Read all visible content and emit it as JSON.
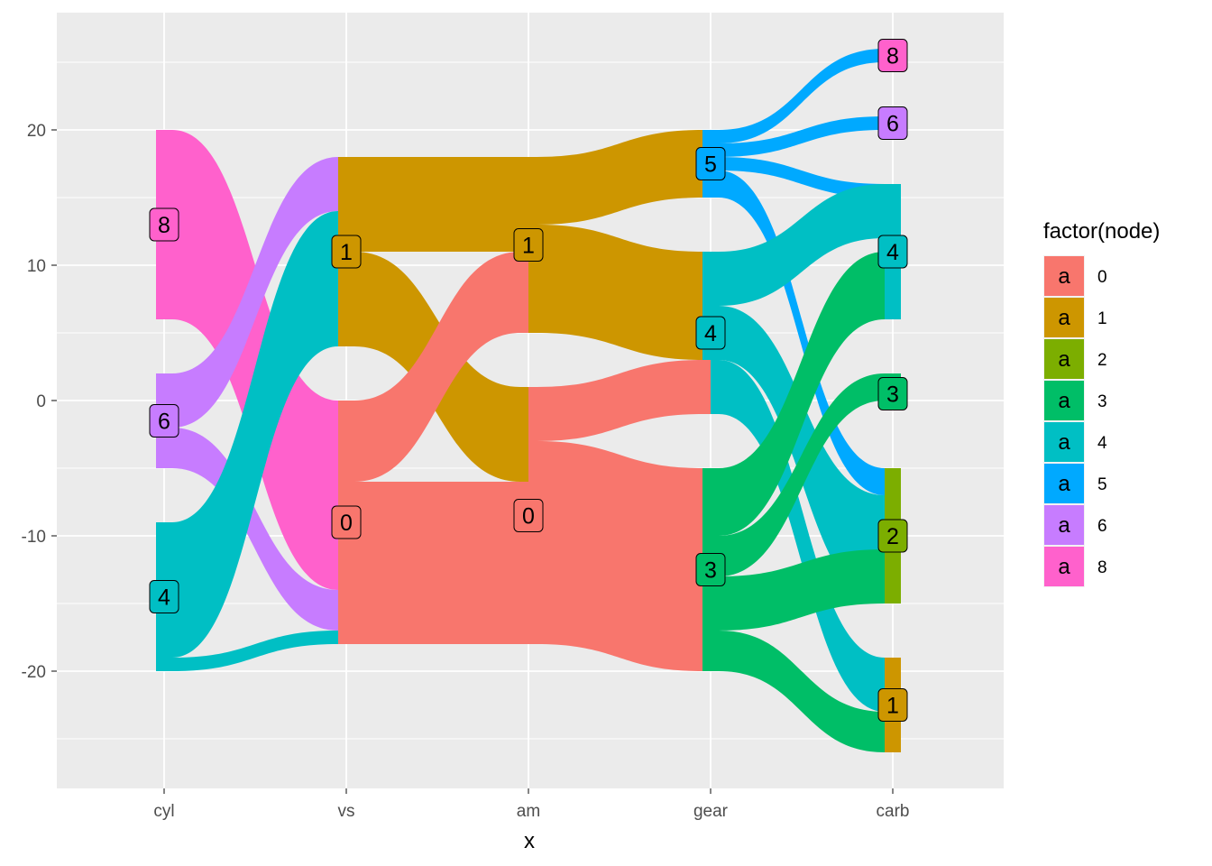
{
  "chart_data": {
    "type": "sankey",
    "xlabel": "x",
    "x_categories": [
      "cyl",
      "vs",
      "am",
      "gear",
      "carb"
    ],
    "y_ticks": [
      20,
      10,
      0,
      -10,
      -20
    ],
    "ylim": [
      -28.6,
      28.6
    ],
    "grid": true,
    "legend": {
      "title": "factor(node)",
      "placement": "right",
      "key_letter": "a",
      "entries": [
        {
          "label": "0",
          "color": "#F8766D"
        },
        {
          "label": "1",
          "color": "#CD9600"
        },
        {
          "label": "2",
          "color": "#7CAE00"
        },
        {
          "label": "3",
          "color": "#00BE67"
        },
        {
          "label": "4",
          "color": "#00BFC4"
        },
        {
          "label": "5",
          "color": "#00A9FF"
        },
        {
          "label": "6",
          "color": "#C77CFF"
        },
        {
          "label": "8",
          "color": "#FF61CC"
        }
      ]
    },
    "nodes": [
      {
        "x": "cyl",
        "node": "8",
        "label": "8",
        "ymin": 6,
        "ymax": 20,
        "label_y": 13
      },
      {
        "x": "cyl",
        "node": "6",
        "label": "6",
        "ymin": -5,
        "ymax": 2,
        "label_y": -1.5
      },
      {
        "x": "cyl",
        "node": "4",
        "label": "4",
        "ymin": -20,
        "ymax": -9,
        "label_y": -14.5
      },
      {
        "x": "vs",
        "node": "1",
        "label": "1",
        "ymin": 4,
        "ymax": 18,
        "label_y": 11
      },
      {
        "x": "vs",
        "node": "0",
        "label": "0",
        "ymin": -18,
        "ymax": 0,
        "label_y": -9
      },
      {
        "x": "am",
        "node": "1",
        "label": "1",
        "ymin": 11,
        "ymax": 11,
        "label_y": 11.5
      },
      {
        "x": "am",
        "node": "0",
        "label": "0",
        "ymin": -8.5,
        "ymax": -8.5,
        "label_y": -8.5
      },
      {
        "x": "gear",
        "node": "5",
        "label": "5",
        "ymin": 15,
        "ymax": 20,
        "label_y": 17.5
      },
      {
        "x": "gear",
        "node": "4",
        "label": "4",
        "ymin": 3,
        "ymax": 11,
        "label_y": 5
      },
      {
        "x": "gear",
        "node": "3",
        "label": "3",
        "ymin": -20,
        "ymax": -5,
        "label_y": -12.5
      },
      {
        "x": "carb",
        "node": "8",
        "label": "8",
        "ymin": 25,
        "ymax": 26,
        "label_y": 25.5
      },
      {
        "x": "carb",
        "node": "6",
        "label": "6",
        "ymin": 20,
        "ymax": 21,
        "label_y": 20.5
      },
      {
        "x": "carb",
        "node": "4",
        "label": "4",
        "ymin": 6,
        "ymax": 16,
        "label_y": 11
      },
      {
        "x": "carb",
        "node": "3",
        "label": "3",
        "ymin": 0,
        "ymax": 2,
        "label_y": 0.5
      },
      {
        "x": "carb",
        "node": "2",
        "label": "2",
        "ymin": -15,
        "ymax": -5,
        "label_y": -10
      },
      {
        "x": "carb",
        "node": "1",
        "label": "1",
        "ymin": -26,
        "ymax": -19,
        "label_y": -22.5
      }
    ],
    "flows": [
      {
        "from": "cyl",
        "to": "vs",
        "node": "8",
        "src": [
          6,
          20
        ],
        "dst": [
          -14,
          0
        ]
      },
      {
        "from": "cyl",
        "to": "vs",
        "node": "6",
        "src": [
          -2,
          2
        ],
        "dst": [
          14,
          18
        ]
      },
      {
        "from": "cyl",
        "to": "vs",
        "node": "6",
        "src": [
          -5,
          -2
        ],
        "dst": [
          -17,
          -14
        ]
      },
      {
        "from": "cyl",
        "to": "vs",
        "node": "4",
        "src": [
          -19,
          -9
        ],
        "dst": [
          4,
          14
        ]
      },
      {
        "from": "cyl",
        "to": "vs",
        "node": "4",
        "src": [
          -20,
          -19
        ],
        "dst": [
          -18,
          -17
        ]
      },
      {
        "from": "vs",
        "to": "am",
        "node": "1",
        "src": [
          11,
          18
        ],
        "dst": [
          11,
          18
        ]
      },
      {
        "from": "vs",
        "to": "am",
        "node": "1",
        "src": [
          4,
          11
        ],
        "dst": [
          -6,
          1
        ]
      },
      {
        "from": "vs",
        "to": "am",
        "node": "0",
        "src": [
          -6,
          0
        ],
        "dst": [
          5,
          11
        ]
      },
      {
        "from": "vs",
        "to": "am",
        "node": "0",
        "src": [
          -18,
          -6
        ],
        "dst": [
          -18,
          -6
        ]
      },
      {
        "from": "am",
        "to": "gear",
        "node": "1",
        "src": [
          13,
          18
        ],
        "dst": [
          15,
          20
        ]
      },
      {
        "from": "am",
        "to": "gear",
        "node": "1",
        "src": [
          5,
          13
        ],
        "dst": [
          3,
          11
        ]
      },
      {
        "from": "am",
        "to": "gear",
        "node": "0",
        "src": [
          -3,
          1
        ],
        "dst": [
          -1,
          3
        ]
      },
      {
        "from": "am",
        "to": "gear",
        "node": "0",
        "src": [
          -18,
          -3
        ],
        "dst": [
          -20,
          -5
        ]
      },
      {
        "from": "gear",
        "to": "carb",
        "node": "5",
        "src": [
          19,
          20
        ],
        "dst": [
          25,
          26
        ]
      },
      {
        "from": "gear",
        "to": "carb",
        "node": "5",
        "src": [
          18,
          19
        ],
        "dst": [
          20,
          21
        ]
      },
      {
        "from": "gear",
        "to": "carb",
        "node": "5",
        "src": [
          17,
          18
        ],
        "dst": [
          15,
          16
        ]
      },
      {
        "from": "gear",
        "to": "carb",
        "node": "5",
        "src": [
          15,
          17
        ],
        "dst": [
          -7,
          -5
        ]
      },
      {
        "from": "gear",
        "to": "carb",
        "node": "4",
        "src": [
          7,
          11
        ],
        "dst": [
          12,
          16
        ]
      },
      {
        "from": "gear",
        "to": "carb",
        "node": "4",
        "src": [
          3,
          7
        ],
        "dst": [
          -15,
          -7
        ]
      },
      {
        "from": "gear",
        "to": "carb",
        "node": "4",
        "src": [
          -1,
          3
        ],
        "dst": [
          -23,
          -19
        ]
      },
      {
        "from": "gear",
        "to": "carb",
        "node": "3",
        "src": [
          -10,
          -5
        ],
        "dst": [
          6,
          11
        ]
      },
      {
        "from": "gear",
        "to": "carb",
        "node": "3",
        "src": [
          -13,
          -10
        ],
        "dst": [
          0,
          2
        ]
      },
      {
        "from": "gear",
        "to": "carb",
        "node": "3",
        "src": [
          -17,
          -13
        ],
        "dst": [
          -15,
          -11
        ]
      },
      {
        "from": "gear",
        "to": "carb",
        "node": "3",
        "src": [
          -20,
          -17
        ],
        "dst": [
          -26,
          -23
        ]
      }
    ]
  }
}
